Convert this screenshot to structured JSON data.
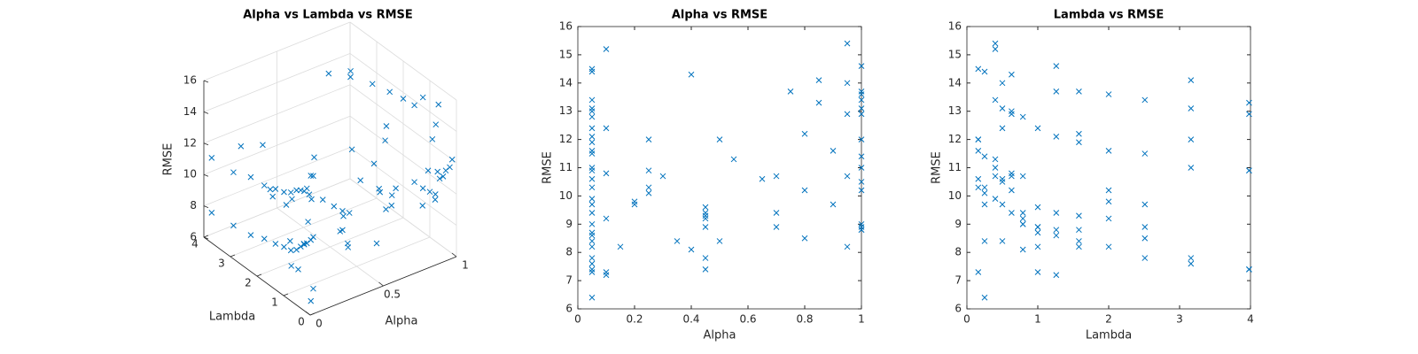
{
  "chart_data": [
    {
      "type": "scatter3d",
      "title": "Alpha vs Lambda vs RMSE",
      "xlabel": "Alpha",
      "ylabel": "Lambda",
      "zlabel": "RMSE",
      "color": "#0072bd",
      "marker": "x",
      "grid": true,
      "xlim": [
        0,
        1
      ],
      "ylim": [
        0,
        4
      ],
      "zlim": [
        6,
        16
      ],
      "xticks": [
        0,
        0.5,
        1
      ],
      "yticks": [
        0,
        1,
        2,
        3,
        4
      ],
      "zticks": [
        6,
        8,
        10,
        12,
        14,
        16
      ],
      "x": [
        0.05,
        0.05,
        0.05,
        0.05,
        0.05,
        0.05,
        0.05,
        0.05,
        0.05,
        0.05,
        0.05,
        0.05,
        0.05,
        0.05,
        0.05,
        0.05,
        0.05,
        0.05,
        0.05,
        0.05,
        0.05,
        0.05,
        0.05,
        0.05,
        0.05,
        0.05,
        0.05,
        0.05,
        0.1,
        0.1,
        0.1,
        0.1,
        0.1,
        0.1,
        0.15,
        0.2,
        0.2,
        0.25,
        0.25,
        0.25,
        0.25,
        0.3,
        0.35,
        0.4,
        0.4,
        0.45,
        0.45,
        0.45,
        0.45,
        0.45,
        0.45,
        0.45,
        0.5,
        0.5,
        0.55,
        0.65,
        0.7,
        0.7,
        0.7,
        0.75,
        0.8,
        0.8,
        0.8,
        0.85,
        0.85,
        0.9,
        0.9,
        0.95,
        0.95,
        0.95,
        0.95,
        0.95,
        1,
        1,
        1,
        1,
        1,
        1,
        1,
        1,
        1,
        1,
        1,
        1,
        1,
        1,
        1
      ],
      "y": [
        0.16,
        0.25,
        0.4,
        0.5,
        0.63,
        0.79,
        1,
        1.26,
        1.58,
        2,
        2.51,
        3.16,
        3.98,
        0.16,
        0.25,
        0.4,
        0.5,
        0.63,
        0.79,
        1,
        1.26,
        1.58,
        2,
        2.51,
        3.16,
        3.98,
        0.16,
        0.25,
        0.4,
        0.5,
        0.63,
        0.79,
        1,
        1.26,
        1.58,
        2,
        2.51,
        3.16,
        3.98,
        0.16,
        0.25,
        0.4,
        0.5,
        0.63,
        0.79,
        1,
        1.26,
        1.58,
        2,
        2.51,
        3.16,
        3.98,
        0.16,
        0.25,
        0.4,
        0.5,
        0.63,
        0.79,
        1,
        1.26,
        1.58,
        2,
        2.51,
        3.16,
        3.98,
        0.16,
        0.25,
        0.4,
        0.5,
        0.63,
        0.79,
        1,
        1.26,
        1.58,
        2,
        2.51,
        3.16,
        3.98,
        0.16,
        0.25,
        0.4,
        0.5,
        0.63,
        0.79,
        1,
        1.26,
        1.58
      ],
      "z": [
        14.5,
        14.4,
        13.4,
        13.1,
        13.0,
        12.8,
        12.4,
        12.1,
        11.9,
        11.6,
        11.5,
        11.0,
        10.9,
        10.6,
        10.3,
        9.9,
        9.7,
        9.4,
        9.0,
        8.7,
        8.6,
        8.4,
        8.2,
        7.8,
        7.6,
        7.4,
        7.3,
        6.4,
        15.2,
        12.4,
        10.8,
        9.2,
        7.3,
        7.2,
        8.2,
        9.8,
        9.7,
        12.0,
        10.9,
        10.3,
        10.1,
        10.7,
        8.4,
        14.3,
        8.1,
        9.6,
        9.4,
        9.3,
        9.2,
        8.9,
        7.8,
        7.4,
        12.0,
        8.4,
        11.3,
        10.6,
        10.7,
        9.4,
        8.9,
        13.7,
        12.2,
        10.2,
        8.5,
        14.1,
        13.3,
        11.6,
        9.7,
        15.4,
        14.0,
        12.9,
        10.7,
        8.2,
        14.6,
        13.7,
        13.6,
        13.4,
        13.1,
        12.9,
        12.0,
        11.4,
        11.0,
        10.5,
        10.2,
        9.0,
        8.9,
        8.8,
        8.8
      ]
    },
    {
      "type": "scatter",
      "title": "Alpha vs RMSE",
      "xlabel": "Alpha",
      "ylabel": "RMSE",
      "color": "#0072bd",
      "marker": "x",
      "xlim": [
        0,
        1
      ],
      "ylim": [
        6,
        16
      ],
      "xticks": [
        0,
        0.2,
        0.4,
        0.6,
        0.8,
        1
      ],
      "yticks": [
        6,
        7,
        8,
        9,
        10,
        11,
        12,
        13,
        14,
        15,
        16
      ],
      "x": [
        0.05,
        0.05,
        0.05,
        0.05,
        0.05,
        0.05,
        0.05,
        0.05,
        0.05,
        0.05,
        0.05,
        0.05,
        0.05,
        0.05,
        0.05,
        0.05,
        0.05,
        0.05,
        0.05,
        0.05,
        0.05,
        0.05,
        0.05,
        0.05,
        0.05,
        0.05,
        0.05,
        0.05,
        0.1,
        0.1,
        0.1,
        0.1,
        0.1,
        0.1,
        0.15,
        0.2,
        0.2,
        0.25,
        0.25,
        0.25,
        0.25,
        0.3,
        0.35,
        0.4,
        0.4,
        0.45,
        0.45,
        0.45,
        0.45,
        0.45,
        0.45,
        0.45,
        0.5,
        0.5,
        0.55,
        0.65,
        0.7,
        0.7,
        0.7,
        0.75,
        0.8,
        0.8,
        0.8,
        0.85,
        0.85,
        0.9,
        0.9,
        0.95,
        0.95,
        0.95,
        0.95,
        0.95,
        1,
        1,
        1,
        1,
        1,
        1,
        1,
        1,
        1,
        1,
        1,
        1,
        1,
        1,
        1
      ],
      "values": [
        14.5,
        14.4,
        13.4,
        13.1,
        13.0,
        12.8,
        12.4,
        12.1,
        11.9,
        11.6,
        11.5,
        11.0,
        10.9,
        10.6,
        10.3,
        9.9,
        9.7,
        9.4,
        9.0,
        8.7,
        8.6,
        8.4,
        8.2,
        7.8,
        7.6,
        7.4,
        7.3,
        6.4,
        15.2,
        12.4,
        10.8,
        9.2,
        7.3,
        7.2,
        8.2,
        9.8,
        9.7,
        12.0,
        10.9,
        10.3,
        10.1,
        10.7,
        8.4,
        14.3,
        8.1,
        9.6,
        9.4,
        9.3,
        9.2,
        8.9,
        7.8,
        7.4,
        12.0,
        8.4,
        11.3,
        10.6,
        10.7,
        9.4,
        8.9,
        13.7,
        12.2,
        10.2,
        8.5,
        14.1,
        13.3,
        11.6,
        9.7,
        15.4,
        14.0,
        12.9,
        10.7,
        8.2,
        14.6,
        13.7,
        13.6,
        13.4,
        13.1,
        12.9,
        12.0,
        11.4,
        11.0,
        10.5,
        10.2,
        9.0,
        8.9,
        8.8,
        8.8
      ]
    },
    {
      "type": "scatter",
      "title": "Lambda vs RMSE",
      "xlabel": "Lambda",
      "ylabel": "RMSE",
      "color": "#0072bd",
      "marker": "x",
      "xlim": [
        0,
        4
      ],
      "ylim": [
        6,
        16
      ],
      "xticks": [
        0,
        1,
        2,
        3,
        4
      ],
      "yticks": [
        6,
        7,
        8,
        9,
        10,
        11,
        12,
        13,
        14,
        15,
        16
      ],
      "x": [
        0.16,
        0.25,
        0.4,
        0.5,
        0.63,
        0.79,
        1,
        1.26,
        1.58,
        2,
        2.51,
        3.16,
        3.98,
        0.16,
        0.25,
        0.4,
        0.5,
        0.63,
        0.79,
        1,
        1.26,
        1.58,
        2,
        2.51,
        3.16,
        3.98,
        0.16,
        0.25,
        0.4,
        0.5,
        0.63,
        0.79,
        1,
        1.26,
        1.58,
        2,
        2.51,
        3.16,
        3.98,
        0.16,
        0.25,
        0.4,
        0.5,
        0.63,
        0.79,
        1,
        1.26,
        1.58,
        2,
        2.51,
        3.16,
        3.98,
        0.16,
        0.25,
        0.4,
        0.5,
        0.63,
        0.79,
        1,
        1.26,
        1.58,
        2,
        2.51,
        3.16,
        3.98,
        0.16,
        0.25,
        0.4,
        0.5,
        0.63,
        0.79,
        1,
        1.26,
        1.58,
        2,
        2.51,
        3.16,
        3.98,
        0.16,
        0.25,
        0.4,
        0.5,
        0.63,
        0.79,
        1,
        1.26,
        1.58
      ],
      "values": [
        14.5,
        14.4,
        13.4,
        13.1,
        13.0,
        12.8,
        12.4,
        12.1,
        11.9,
        11.6,
        11.5,
        11.0,
        10.9,
        10.6,
        10.3,
        9.9,
        9.7,
        9.4,
        9.0,
        8.7,
        8.6,
        8.4,
        8.2,
        7.8,
        7.6,
        7.4,
        7.3,
        6.4,
        15.2,
        12.4,
        10.8,
        9.2,
        7.3,
        7.2,
        8.2,
        9.8,
        9.7,
        12.0,
        10.9,
        10.3,
        10.1,
        10.7,
        8.4,
        14.3,
        8.1,
        9.6,
        9.4,
        9.3,
        9.2,
        8.9,
        7.8,
        7.4,
        12.0,
        8.4,
        11.3,
        10.6,
        10.7,
        9.4,
        8.9,
        13.7,
        12.2,
        10.2,
        8.5,
        14.1,
        13.3,
        11.6,
        9.7,
        15.4,
        14.0,
        12.9,
        10.7,
        8.2,
        14.6,
        13.7,
        13.6,
        13.4,
        13.1,
        12.9,
        12.0,
        11.4,
        11.0,
        10.5,
        10.2,
        9.0,
        8.9,
        8.8,
        8.8
      ]
    }
  ]
}
